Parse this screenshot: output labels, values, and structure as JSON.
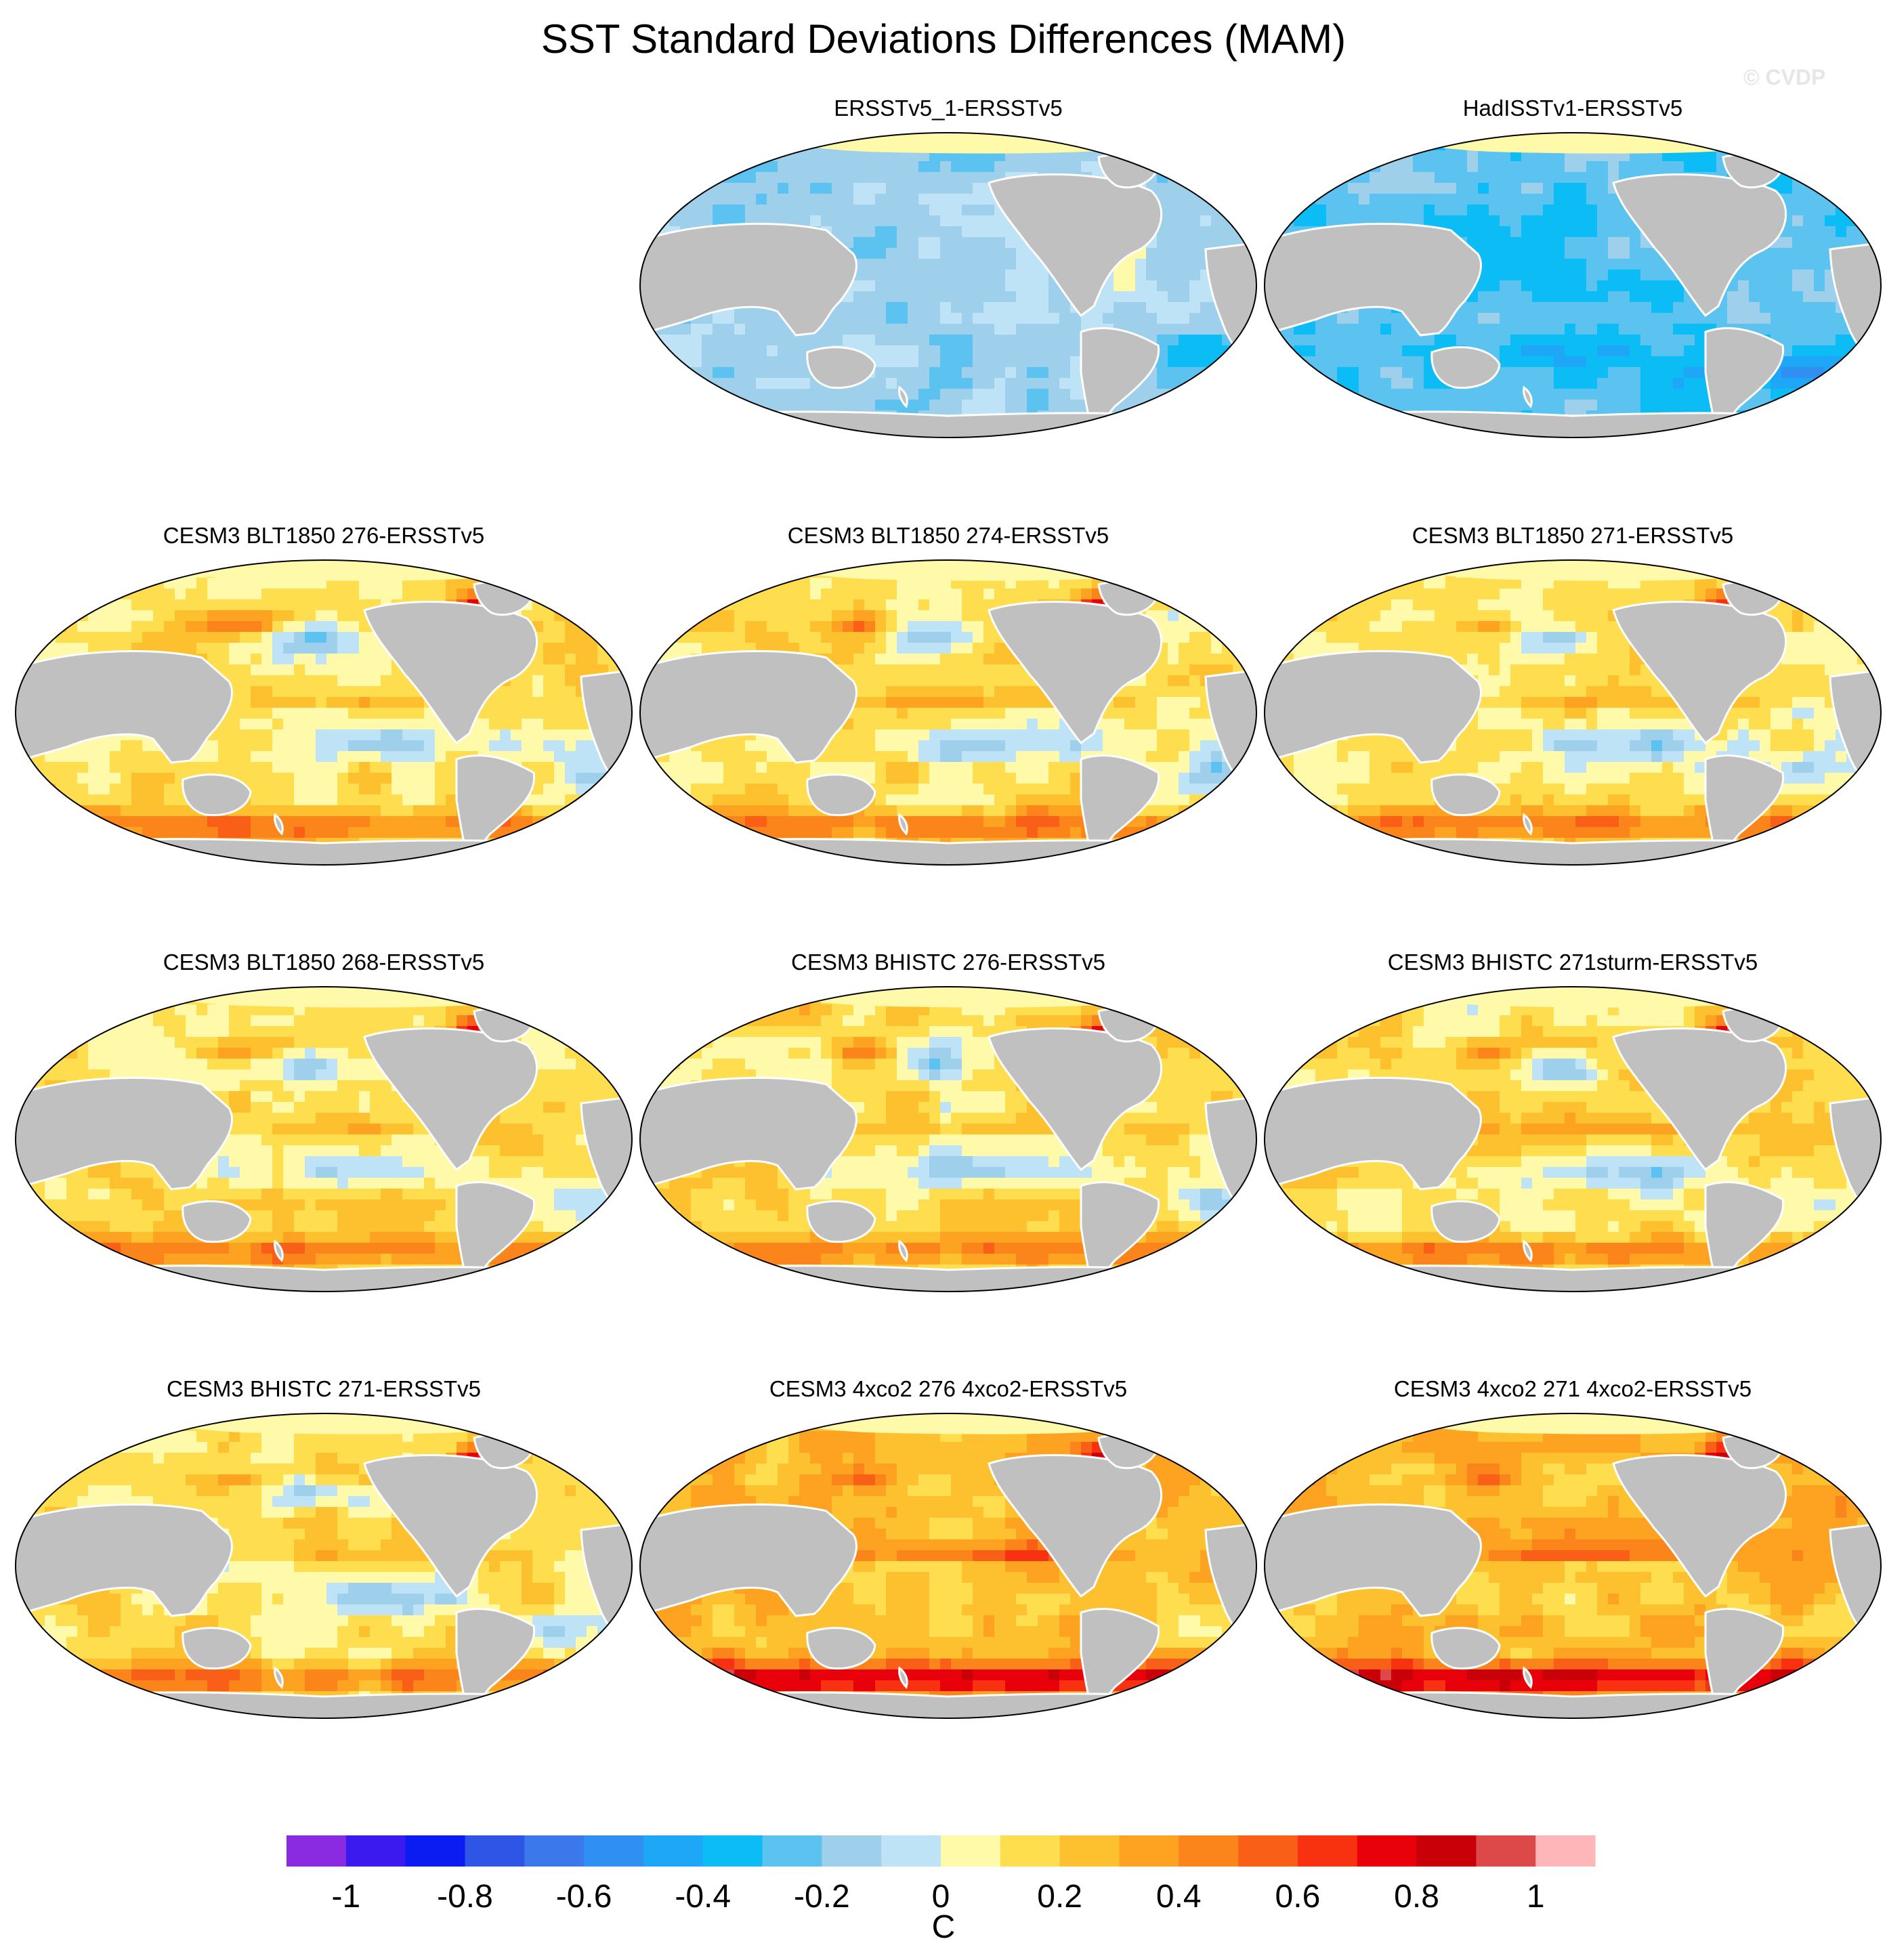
{
  "figure": {
    "title": "SST Standard Deviations Differences (MAM)",
    "watermark": "© CVDP"
  },
  "chart_data": {
    "type": "heatmap",
    "projection": "Robinson (global, Pacific-centred)",
    "variable": "SST standard deviation difference",
    "season": "MAM",
    "panels": [
      {
        "title": "ERSSTv5_1-ERSSTv5",
        "pattern": "obs1"
      },
      {
        "title": "HadISSTv1-ERSSTv5",
        "pattern": "obs2"
      },
      {
        "title": "CESM3 BLT1850 276-ERSSTv5",
        "pattern": "model"
      },
      {
        "title": "CESM3 BLT1850 274-ERSSTv5",
        "pattern": "model"
      },
      {
        "title": "CESM3 BLT1850 271-ERSSTv5",
        "pattern": "model"
      },
      {
        "title": "CESM3 BLT1850 268-ERSSTv5",
        "pattern": "model"
      },
      {
        "title": "CESM3 BHISTC 276-ERSSTv5",
        "pattern": "model"
      },
      {
        "title": "CESM3 BHISTC 271sturm-ERSSTv5",
        "pattern": "model"
      },
      {
        "title": "CESM3 BHISTC 271-ERSSTv5",
        "pattern": "model"
      },
      {
        "title": "CESM3 4xco2 276 4xco2-ERSSTv5",
        "pattern": "warm"
      },
      {
        "title": "CESM3 4xco2 271 4xco2-ERSSTv5",
        "pattern": "warm"
      }
    ],
    "colorbar": {
      "label": "C",
      "boundaries": [
        -1.1,
        -1.0,
        -0.9,
        -0.8,
        -0.7,
        -0.6,
        -0.5,
        -0.4,
        -0.3,
        -0.2,
        -0.1,
        0,
        0.1,
        0.2,
        0.3,
        0.4,
        0.5,
        0.6,
        0.7,
        0.8,
        0.9,
        1.0,
        1.1
      ],
      "tick_values": [
        -1,
        -0.8,
        -0.6,
        -0.4,
        -0.2,
        0,
        0.2,
        0.4,
        0.6,
        0.8,
        1
      ],
      "tick_labels": [
        "-1",
        "-0.8",
        "-0.6",
        "-0.4",
        "-0.2",
        "0",
        "0.2",
        "0.4",
        "0.6",
        "0.8",
        "1"
      ],
      "colors": [
        "#8a2be2",
        "#3a1aee",
        "#0a1cf2",
        "#2f55e6",
        "#3a78ec",
        "#2f8ff2",
        "#1ea6f7",
        "#0cbdf5",
        "#5cc3f0",
        "#9ed0ec",
        "#bfe3f6",
        "#fff9aa",
        "#fedd4f",
        "#fdc12f",
        "#fda321",
        "#fb851a",
        "#f95f16",
        "#f83210",
        "#e8000a",
        "#c90008",
        "#dd4848",
        "#ffb6b9"
      ]
    },
    "fills": {
      "land": "#c0c0c0",
      "sea_ice": "#fff9aa",
      "coastline": "#ffffff"
    }
  }
}
